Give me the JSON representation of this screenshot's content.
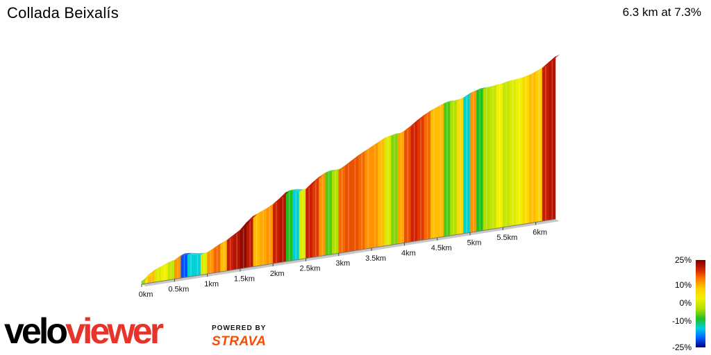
{
  "header": {
    "title": "Collada Beixalís",
    "stats": "6.3 km at 7.3%"
  },
  "legend": {
    "labels": [
      "25%",
      "10%",
      "0%",
      "-10%",
      "-25%"
    ],
    "colors": [
      "#7a0000",
      "#d42000",
      "#ff8000",
      "#ffd000",
      "#f0f000",
      "#b0e000",
      "#20c020",
      "#00d0e0",
      "#0060ff",
      "#000080"
    ]
  },
  "branding": {
    "logo_part1": "velo",
    "logo_part2": "viewer",
    "powered_by": "POWERED BY",
    "strava": "STRAVA"
  },
  "chart_data": {
    "type": "area",
    "title": "Collada Beixalís",
    "subtitle": "6.3 km at 7.3%",
    "xlabel": "",
    "ylabel": "",
    "x_unit": "km",
    "x_ticks": [
      "0km",
      "0.5km",
      "1km",
      "1.5km",
      "2km",
      "2.5km",
      "3km",
      "3.5km",
      "4km",
      "4.5km",
      "5km",
      "5.5km",
      "6km"
    ],
    "xlim": [
      0,
      6.3
    ],
    "distance_km": 6.3,
    "average_gradient_pct": 7.3,
    "gradient_scale": {
      "min": -25,
      "max": 25,
      "labels": [
        "25%",
        "10%",
        "0%",
        "-10%",
        "-25%"
      ]
    },
    "profile": {
      "x": [
        0.0,
        0.05,
        0.1,
        0.2,
        0.3,
        0.4,
        0.5,
        0.6,
        0.7,
        0.8,
        0.9,
        1.0,
        1.1,
        1.2,
        1.3,
        1.4,
        1.5,
        1.6,
        1.7,
        1.8,
        1.9,
        2.0,
        2.1,
        2.2,
        2.3,
        2.4,
        2.5,
        2.6,
        2.7,
        2.8,
        2.9,
        3.0,
        3.1,
        3.2,
        3.3,
        3.4,
        3.5,
        3.6,
        3.7,
        3.8,
        3.9,
        4.0,
        4.1,
        4.2,
        4.3,
        4.4,
        4.5,
        4.6,
        4.7,
        4.8,
        4.9,
        5.0,
        5.1,
        5.2,
        5.3,
        5.4,
        5.5,
        5.6,
        5.7,
        5.8,
        5.9,
        6.0,
        6.1,
        6.2,
        6.3
      ],
      "y": [
        0,
        3,
        8,
        14,
        18,
        22,
        24,
        30,
        29,
        27,
        26,
        28,
        33,
        38,
        42,
        48,
        54,
        64,
        72,
        76,
        80,
        85,
        92,
        100,
        100,
        98,
        100,
        108,
        115,
        120,
        120,
        121,
        126,
        132,
        138,
        143,
        148,
        153,
        158,
        160,
        160,
        164,
        170,
        177,
        183,
        188,
        192,
        196,
        196,
        197,
        200,
        205,
        208,
        208,
        209,
        210,
        212,
        213,
        214,
        216,
        218,
        222,
        226,
        233,
        240
      ]
    },
    "gradient_pct": [
      2,
      8,
      10,
      5,
      6,
      4,
      12,
      -15,
      -4,
      -6,
      5,
      12,
      14,
      10,
      18,
      20,
      23,
      19,
      10,
      11,
      12,
      18,
      20,
      0,
      -5,
      5,
      18,
      16,
      12,
      1,
      3,
      14,
      15,
      15,
      14,
      12,
      12,
      10,
      5,
      2,
      11,
      15,
      17,
      16,
      14,
      10,
      10,
      1,
      3,
      8,
      -3,
      12,
      0,
      3,
      4,
      6,
      4,
      5,
      6,
      8,
      10,
      9,
      18,
      20
    ]
  }
}
